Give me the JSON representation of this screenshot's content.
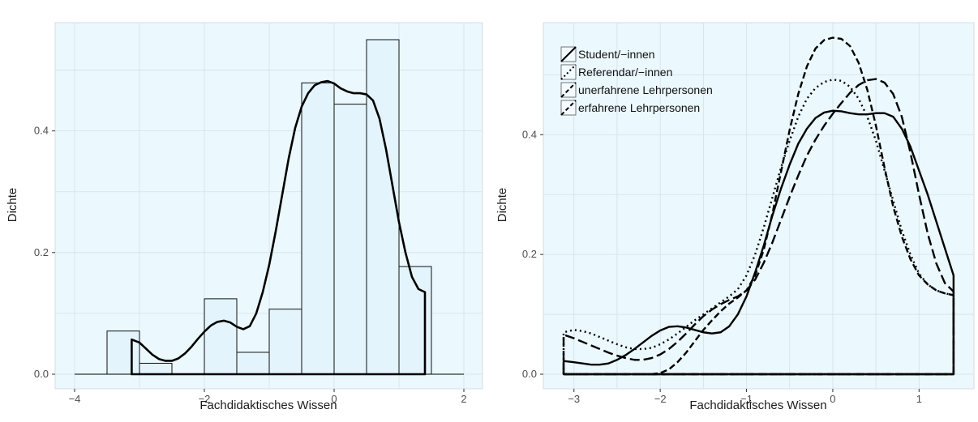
{
  "chart_data": [
    {
      "type": "histogram",
      "xlabel": "Fachdidaktisches Wissen",
      "ylabel": "Dichte",
      "xlim": [
        -4,
        2
      ],
      "ylim": [
        0,
        0.55
      ],
      "grid": true,
      "x_ticks": [
        -4,
        -2,
        0,
        2
      ],
      "x_tick_labels": [
        "−4",
        "−2",
        "0",
        "2"
      ],
      "y_ticks": [
        0.0,
        0.2,
        0.4
      ],
      "y_tick_labels": [
        "0.0",
        "0.2",
        "0.4"
      ],
      "bins": [
        {
          "x0": -3.5,
          "x1": -3.0,
          "value": 0.071
        },
        {
          "x0": -3.0,
          "x1": -2.5,
          "value": 0.018
        },
        {
          "x0": -2.5,
          "x1": -2.0,
          "value": 0.0
        },
        {
          "x0": -2.0,
          "x1": -1.5,
          "value": 0.124
        },
        {
          "x0": -1.5,
          "x1": -1.0,
          "value": 0.036
        },
        {
          "x0": -1.0,
          "x1": -0.5,
          "value": 0.107
        },
        {
          "x0": -0.5,
          "x1": 0.0,
          "value": 0.479
        },
        {
          "x0": 0.0,
          "x1": 0.5,
          "value": 0.444
        },
        {
          "x0": 0.5,
          "x1": 1.0,
          "value": 0.55
        },
        {
          "x0": 1.0,
          "x1": 1.5,
          "value": 0.177
        }
      ],
      "density": {
        "x": [
          -3.12,
          -3.0,
          -2.9,
          -2.8,
          -2.7,
          -2.6,
          -2.5,
          -2.4,
          -2.3,
          -2.2,
          -2.1,
          -2.0,
          -1.9,
          -1.8,
          -1.7,
          -1.6,
          -1.5,
          -1.4,
          -1.3,
          -1.2,
          -1.1,
          -1.0,
          -0.9,
          -0.8,
          -0.7,
          -0.6,
          -0.5,
          -0.4,
          -0.3,
          -0.2,
          -0.1,
          0.0,
          0.1,
          0.2,
          0.3,
          0.4,
          0.5,
          0.6,
          0.7,
          0.8,
          0.9,
          1.0,
          1.1,
          1.2,
          1.3,
          1.4
        ],
        "y": [
          0.057,
          0.052,
          0.042,
          0.032,
          0.025,
          0.022,
          0.022,
          0.026,
          0.034,
          0.045,
          0.058,
          0.07,
          0.08,
          0.086,
          0.088,
          0.085,
          0.078,
          0.074,
          0.079,
          0.1,
          0.135,
          0.18,
          0.235,
          0.295,
          0.355,
          0.405,
          0.44,
          0.462,
          0.475,
          0.48,
          0.482,
          0.478,
          0.47,
          0.465,
          0.462,
          0.462,
          0.46,
          0.45,
          0.42,
          0.37,
          0.31,
          0.25,
          0.2,
          0.16,
          0.14,
          0.135
        ],
        "line": "solid"
      }
    },
    {
      "type": "line",
      "xlabel": "Fachdidaktisches Wissen",
      "ylabel": "Dichte",
      "xlim": [
        -3.12,
        1.42
      ],
      "ylim": [
        0,
        0.56
      ],
      "grid": true,
      "legend_position": "top-left",
      "x_ticks": [
        -3,
        -2,
        -1,
        0,
        1
      ],
      "x_tick_labels": [
        "−3",
        "−2",
        "−1",
        "0",
        "1"
      ],
      "y_ticks": [
        0.0,
        0.2,
        0.4
      ],
      "y_tick_labels": [
        "0.0",
        "0.2",
        "0.4"
      ],
      "x": [
        -3.12,
        -3.0,
        -2.9,
        -2.8,
        -2.7,
        -2.6,
        -2.5,
        -2.4,
        -2.3,
        -2.2,
        -2.1,
        -2.0,
        -1.9,
        -1.8,
        -1.7,
        -1.6,
        -1.5,
        -1.4,
        -1.3,
        -1.2,
        -1.1,
        -1.0,
        -0.9,
        -0.8,
        -0.7,
        -0.6,
        -0.5,
        -0.4,
        -0.3,
        -0.2,
        -0.1,
        0.0,
        0.1,
        0.2,
        0.3,
        0.4,
        0.5,
        0.6,
        0.7,
        0.8,
        0.9,
        1.0,
        1.1,
        1.2,
        1.3,
        1.4
      ],
      "series": [
        {
          "name": "Student/−innen",
          "dash": "solid",
          "values": [
            0.022,
            0.02,
            0.018,
            0.016,
            0.016,
            0.018,
            0.024,
            0.032,
            0.042,
            0.053,
            0.064,
            0.073,
            0.079,
            0.08,
            0.078,
            0.074,
            0.07,
            0.068,
            0.07,
            0.08,
            0.1,
            0.13,
            0.17,
            0.215,
            0.265,
            0.31,
            0.35,
            0.385,
            0.41,
            0.428,
            0.437,
            0.44,
            0.439,
            0.436,
            0.434,
            0.434,
            0.436,
            0.436,
            0.43,
            0.41,
            0.38,
            0.34,
            0.3,
            0.255,
            0.21,
            0.165
          ]
        },
        {
          "name": "Referendar/−innen",
          "dash": "dot",
          "values": [
            0.07,
            0.074,
            0.072,
            0.068,
            0.062,
            0.056,
            0.05,
            0.045,
            0.042,
            0.042,
            0.044,
            0.05,
            0.058,
            0.068,
            0.079,
            0.09,
            0.1,
            0.11,
            0.12,
            0.13,
            0.142,
            0.165,
            0.2,
            0.245,
            0.295,
            0.345,
            0.39,
            0.43,
            0.46,
            0.478,
            0.488,
            0.492,
            0.49,
            0.48,
            0.46,
            0.43,
            0.39,
            0.34,
            0.29,
            0.24,
            0.2,
            0.168,
            0.15,
            0.14,
            0.135,
            0.132
          ]
        },
        {
          "name": "unerfahrene Lehrpersonen",
          "dash": "longdash",
          "values": [
            0.066,
            0.06,
            0.054,
            0.048,
            0.042,
            0.036,
            0.031,
            0.027,
            0.024,
            0.024,
            0.027,
            0.033,
            0.042,
            0.054,
            0.068,
            0.083,
            0.097,
            0.108,
            0.117,
            0.124,
            0.13,
            0.14,
            0.158,
            0.186,
            0.22,
            0.258,
            0.296,
            0.332,
            0.365,
            0.392,
            0.415,
            0.435,
            0.453,
            0.47,
            0.483,
            0.491,
            0.493,
            0.487,
            0.468,
            0.43,
            0.37,
            0.3,
            0.235,
            0.185,
            0.152,
            0.138
          ]
        },
        {
          "name": "erfahrene Lehrpersonen",
          "dash": "dash",
          "values": [
            0.0,
            0.0,
            0.0,
            0.0,
            0.0,
            0.0,
            0.0,
            0.0,
            0.0,
            0.0,
            0.0,
            0.002,
            0.008,
            0.02,
            0.036,
            0.055,
            0.074,
            0.09,
            0.105,
            0.118,
            0.128,
            0.14,
            0.165,
            0.208,
            0.268,
            0.338,
            0.408,
            0.468,
            0.514,
            0.544,
            0.558,
            0.562,
            0.56,
            0.548,
            0.52,
            0.475,
            0.415,
            0.345,
            0.28,
            0.23,
            0.192,
            0.165,
            0.15,
            0.14,
            0.135,
            0.132
          ]
        }
      ]
    }
  ]
}
